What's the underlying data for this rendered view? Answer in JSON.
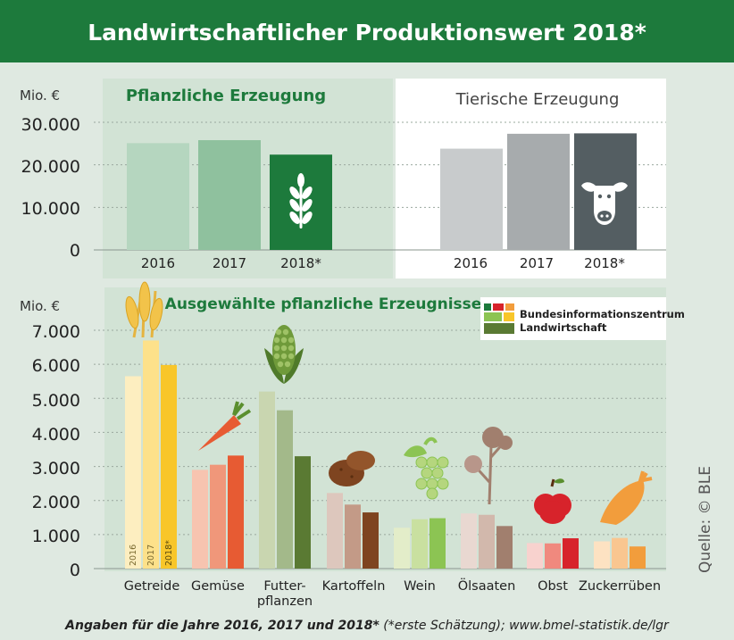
{
  "title": "Landwirtschaftlicher Produktionswert 2018*",
  "source": "Quelle: © BLE",
  "footnote": {
    "bold": "Angaben für die Jahre 2016, 2017 und 2018*",
    "rest": " (*erste Schätzung); www.bmel-statistik.de/lgr"
  },
  "logo": {
    "line1": "Bundesinformationszentrum",
    "line2": "Landwirtschaft"
  },
  "colors": {
    "header": "#1d7a3c",
    "title_text": "#ffffff",
    "panel_green": "#d2e3d5",
    "panel_grey": "#ffffff",
    "background": "#dfe9e1"
  },
  "icons": [
    "wheat-icon",
    "cow-icon",
    "wheat-ear-icon",
    "carrot-icon",
    "corn-icon",
    "potato-icon",
    "grape-icon",
    "rapeseed-icon",
    "apple-icon",
    "sugar-beet-icon"
  ],
  "chart_data": [
    {
      "type": "bar",
      "title": "Pflanzliche Erzeugung",
      "unit_label": "Mio. €",
      "categories": [
        "2016",
        "2017",
        "2018*"
      ],
      "values": [
        25100,
        25800,
        22400
      ],
      "yticks": [
        "0",
        "10.000",
        "20.000",
        "30.000"
      ],
      "ylim": [
        0,
        30000
      ],
      "colors": [
        "#b5d6bf",
        "#8fc19e",
        "#1d7a3c"
      ],
      "grid": "dashed"
    },
    {
      "type": "bar",
      "title": "Tierische Erzeugung",
      "categories": [
        "2016",
        "2017",
        "2018*"
      ],
      "values": [
        23800,
        27300,
        27400
      ],
      "ylim": [
        0,
        30000
      ],
      "colors": [
        "#c8cbcc",
        "#a7abad",
        "#545e62"
      ],
      "grid": "dashed"
    },
    {
      "type": "bar",
      "title": "Ausgewählte pflanzliche Erzeugnisse",
      "unit_label": "Mio. €",
      "categories": [
        "Getreide",
        "Gemüse",
        "Futter-pflanzen",
        "Kartoffeln",
        "Wein",
        "Ölsaaten",
        "Obst",
        "Zuckerrüben"
      ],
      "series": [
        {
          "name": "2016",
          "values": [
            5650,
            2900,
            5200,
            2220,
            1200,
            1620,
            750,
            800
          ]
        },
        {
          "name": "2017",
          "values": [
            6700,
            3050,
            4650,
            1880,
            1450,
            1580,
            740,
            900
          ]
        },
        {
          "name": "2018*",
          "values": [
            5980,
            3320,
            3300,
            1650,
            1480,
            1250,
            890,
            650
          ]
        }
      ],
      "yticks": [
        "0",
        "1.000",
        "2.000",
        "3.000",
        "4.000",
        "5.000",
        "6.000",
        "7.000"
      ],
      "ylim": [
        0,
        7000
      ],
      "colors": [
        [
          "#fdeec0",
          "#fde18a",
          "#f8c62a"
        ],
        [
          "#f7c4b0",
          "#f0977a",
          "#e75b33"
        ],
        [
          "#c9d6b0",
          "#a3b98a",
          "#5a7a33"
        ],
        [
          "#ddc7bd",
          "#c39a87",
          "#7e4420"
        ],
        [
          "#e3edc9",
          "#c9e0a0",
          "#8cc453"
        ],
        [
          "#e9d8d1",
          "#d2b8ac",
          "#a17f6e"
        ],
        [
          "#f8d2ce",
          "#f0897e",
          "#d7232b"
        ],
        [
          "#fde2c2",
          "#f9c690",
          "#f29d3c"
        ]
      ],
      "grid": "dashed"
    }
  ]
}
